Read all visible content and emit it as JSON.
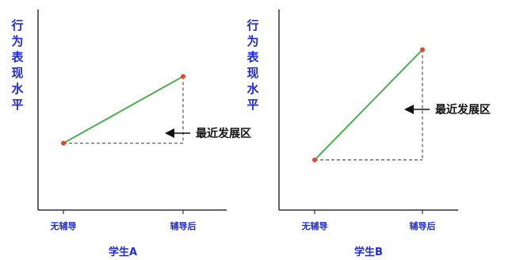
{
  "chart_data": [
    {
      "type": "line",
      "ylabel": "行为表现水平",
      "xlabel": "学生A",
      "categories": [
        "无辅导",
        "辅导后"
      ],
      "values": [
        1.0,
        2.0
      ],
      "ylim": [
        0,
        3.0
      ],
      "annotation": "最近发展区",
      "colors": {
        "line": "#4caf50",
        "point": "#e2462e",
        "axis": "#333333",
        "text": "#1f2bd6"
      }
    },
    {
      "type": "line",
      "ylabel": "行为表现水平",
      "xlabel": "学生B",
      "categories": [
        "无辅导",
        "辅导后"
      ],
      "values": [
        1.0,
        3.2
      ],
      "ylim": [
        0,
        4.0
      ],
      "annotation": "最近发展区",
      "colors": {
        "line": "#4caf50",
        "point": "#e2462e",
        "axis": "#333333",
        "text": "#1f2bd6"
      }
    }
  ]
}
